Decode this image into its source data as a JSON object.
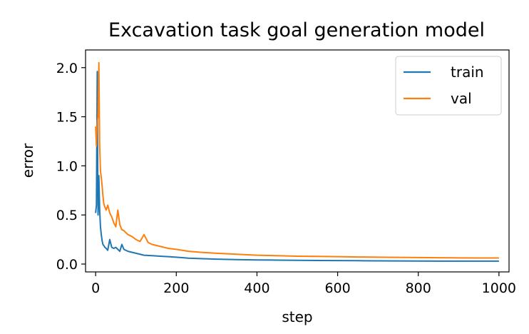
{
  "chart_data": {
    "type": "line",
    "title": "Excavation task goal generation model",
    "xlabel": "step",
    "ylabel": "error",
    "xlim": [
      -25,
      1025
    ],
    "ylim": [
      -0.08,
      2.18
    ],
    "x_ticks": [
      0,
      200,
      400,
      600,
      800,
      1000
    ],
    "x_tick_labels": [
      "0",
      "200",
      "400",
      "600",
      "800",
      "1000"
    ],
    "y_ticks": [
      0.0,
      0.5,
      1.0,
      1.5,
      2.0
    ],
    "y_tick_labels": [
      "0.0",
      "0.5",
      "1.0",
      "1.5",
      "2.0"
    ],
    "grid": false,
    "legend": {
      "position": "upper right"
    },
    "series": [
      {
        "name": "train",
        "color": "#1f77b4",
        "x": [
          0,
          2,
          4,
          5,
          6,
          8,
          10,
          12,
          14,
          16,
          18,
          20,
          23,
          26,
          30,
          35,
          40,
          45,
          50,
          55,
          60,
          65,
          70,
          75,
          80,
          90,
          100,
          110,
          120,
          140,
          160,
          180,
          200,
          230,
          260,
          300,
          350,
          400,
          450,
          500,
          550,
          600,
          650,
          700,
          750,
          800,
          850,
          900,
          950,
          1000
        ],
        "y": [
          0.52,
          0.6,
          1.96,
          1.1,
          0.5,
          0.9,
          0.55,
          0.38,
          0.3,
          0.24,
          0.2,
          0.19,
          0.17,
          0.16,
          0.14,
          0.25,
          0.17,
          0.16,
          0.17,
          0.15,
          0.13,
          0.2,
          0.15,
          0.14,
          0.13,
          0.12,
          0.11,
          0.1,
          0.09,
          0.085,
          0.08,
          0.075,
          0.07,
          0.06,
          0.055,
          0.05,
          0.045,
          0.042,
          0.04,
          0.038,
          0.036,
          0.035,
          0.034,
          0.033,
          0.032,
          0.031,
          0.03,
          0.03,
          0.03,
          0.03
        ]
      },
      {
        "name": "val",
        "color": "#ff7f0e",
        "x": [
          0,
          2,
          4,
          6,
          8,
          10,
          12,
          14,
          16,
          18,
          20,
          23,
          26,
          30,
          35,
          40,
          45,
          50,
          55,
          60,
          65,
          70,
          75,
          80,
          90,
          100,
          110,
          120,
          130,
          140,
          150,
          160,
          180,
          200,
          230,
          260,
          300,
          350,
          400,
          450,
          500,
          550,
          600,
          650,
          700,
          750,
          800,
          850,
          900,
          950,
          1000
        ],
        "y": [
          1.4,
          1.2,
          1.45,
          1.5,
          2.05,
          1.2,
          0.95,
          0.88,
          0.8,
          0.7,
          0.62,
          0.58,
          0.55,
          0.6,
          0.52,
          0.48,
          0.42,
          0.38,
          0.55,
          0.4,
          0.35,
          0.34,
          0.32,
          0.3,
          0.28,
          0.25,
          0.23,
          0.3,
          0.22,
          0.2,
          0.19,
          0.18,
          0.16,
          0.15,
          0.13,
          0.12,
          0.11,
          0.1,
          0.09,
          0.085,
          0.08,
          0.078,
          0.075,
          0.072,
          0.07,
          0.068,
          0.066,
          0.064,
          0.063,
          0.062,
          0.062
        ]
      }
    ]
  }
}
